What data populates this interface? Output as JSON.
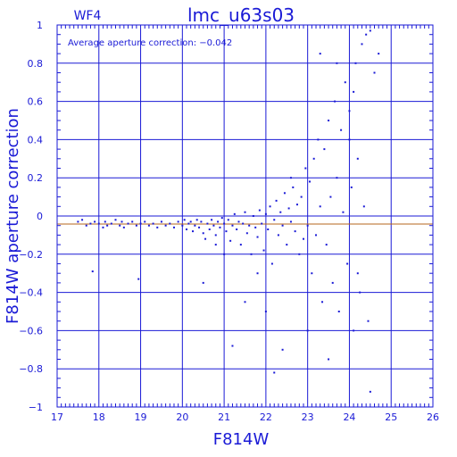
{
  "chart_data": {
    "type": "scatter",
    "title": "lmc_u63s03",
    "chip_label": "WF4",
    "annotation": "Average aperture correction: −0.042",
    "xlabel": "F814W",
    "ylabel": "F814W aperture correction",
    "xlim": [
      17,
      26
    ],
    "ylim": [
      -1,
      1
    ],
    "x_ticks": [
      17,
      18,
      19,
      20,
      21,
      22,
      23,
      24,
      25,
      26
    ],
    "x_tick_labels": [
      "17",
      "18",
      "19",
      "20",
      "21",
      "22",
      "23",
      "24",
      "25",
      "26"
    ],
    "y_ticks": [
      -1,
      -0.8,
      -0.6,
      -0.4,
      -0.2,
      0,
      0.2,
      0.4,
      0.6,
      0.8,
      1
    ],
    "y_tick_labels": [
      "−1",
      "−0.8",
      "−0.6",
      "−0.4",
      "−0.2",
      "0",
      "0.2",
      "0.4",
      "0.6",
      "0.8",
      "1"
    ],
    "grid": true,
    "mean_line": {
      "y": -0.042,
      "color": "#b5651d"
    },
    "zero_line": {
      "y": 0,
      "color": "#1a1ad6"
    },
    "point_color": "#1a1ad6",
    "points": [
      [
        17.5,
        -0.03
      ],
      [
        17.6,
        -0.02
      ],
      [
        17.7,
        -0.05
      ],
      [
        17.8,
        -0.04
      ],
      [
        17.85,
        -0.29
      ],
      [
        17.9,
        -0.03
      ],
      [
        18.0,
        -0.04
      ],
      [
        18.1,
        -0.06
      ],
      [
        18.15,
        -0.03
      ],
      [
        18.2,
        -0.05
      ],
      [
        18.3,
        -0.04
      ],
      [
        18.4,
        -0.02
      ],
      [
        18.5,
        -0.05
      ],
      [
        18.55,
        -0.03
      ],
      [
        18.6,
        -0.06
      ],
      [
        18.7,
        -0.04
      ],
      [
        18.8,
        -0.03
      ],
      [
        18.9,
        -0.05
      ],
      [
        18.95,
        -0.33
      ],
      [
        19.0,
        -0.04
      ],
      [
        19.1,
        -0.03
      ],
      [
        19.2,
        -0.05
      ],
      [
        19.3,
        -0.04
      ],
      [
        19.4,
        -0.06
      ],
      [
        19.5,
        -0.03
      ],
      [
        19.6,
        -0.05
      ],
      [
        19.7,
        -0.04
      ],
      [
        19.8,
        -0.06
      ],
      [
        19.9,
        -0.03
      ],
      [
        20.0,
        -0.05
      ],
      [
        20.05,
        -0.02
      ],
      [
        20.1,
        -0.07
      ],
      [
        20.15,
        -0.04
      ],
      [
        20.2,
        -0.03
      ],
      [
        20.25,
        -0.08
      ],
      [
        20.3,
        -0.05
      ],
      [
        20.35,
        -0.02
      ],
      [
        20.4,
        -0.06
      ],
      [
        20.45,
        -0.03
      ],
      [
        20.5,
        -0.09
      ],
      [
        20.55,
        -0.12
      ],
      [
        20.6,
        -0.04
      ],
      [
        20.65,
        -0.07
      ],
      [
        20.7,
        -0.02
      ],
      [
        20.75,
        -0.05
      ],
      [
        20.8,
        -0.1
      ],
      [
        20.85,
        -0.03
      ],
      [
        20.9,
        -0.06
      ],
      [
        20.95,
        -0.01
      ],
      [
        21.0,
        -0.04
      ],
      [
        21.05,
        -0.08
      ],
      [
        21.1,
        -0.02
      ],
      [
        21.15,
        -0.13
      ],
      [
        21.2,
        -0.05
      ],
      [
        21.25,
        0.01
      ],
      [
        21.3,
        -0.07
      ],
      [
        21.35,
        -0.03
      ],
      [
        21.4,
        -0.15
      ],
      [
        21.45,
        -0.04
      ],
      [
        21.5,
        0.02
      ],
      [
        21.55,
        -0.09
      ],
      [
        21.6,
        -0.05
      ],
      [
        21.65,
        -0.2
      ],
      [
        21.7,
        0.0
      ],
      [
        21.75,
        -0.06
      ],
      [
        21.8,
        -0.11
      ],
      [
        21.85,
        0.03
      ],
      [
        21.9,
        -0.04
      ],
      [
        21.95,
        -0.18
      ],
      [
        22.0,
        0.01
      ],
      [
        22.05,
        -0.07
      ],
      [
        22.1,
        0.05
      ],
      [
        22.15,
        -0.25
      ],
      [
        22.2,
        -0.02
      ],
      [
        22.25,
        0.08
      ],
      [
        22.3,
        -0.1
      ],
      [
        22.35,
        0.02
      ],
      [
        22.4,
        -0.05
      ],
      [
        22.45,
        0.12
      ],
      [
        22.5,
        -0.15
      ],
      [
        22.55,
        0.04
      ],
      [
        22.6,
        -0.03
      ],
      [
        22.65,
        0.15
      ],
      [
        22.7,
        -0.08
      ],
      [
        22.75,
        0.06
      ],
      [
        22.8,
        -0.2
      ],
      [
        22.85,
        0.1
      ],
      [
        22.9,
        -0.12
      ],
      [
        22.95,
        0.25
      ],
      [
        23.0,
        -0.05
      ],
      [
        23.05,
        0.18
      ],
      [
        23.1,
        -0.3
      ],
      [
        23.15,
        0.3
      ],
      [
        23.2,
        -0.1
      ],
      [
        23.25,
        0.4
      ],
      [
        23.3,
        0.05
      ],
      [
        23.35,
        -0.45
      ],
      [
        23.4,
        0.35
      ],
      [
        23.45,
        -0.15
      ],
      [
        23.5,
        0.5
      ],
      [
        23.55,
        0.1
      ],
      [
        23.6,
        -0.35
      ],
      [
        23.65,
        0.6
      ],
      [
        23.7,
        0.2
      ],
      [
        23.75,
        -0.5
      ],
      [
        23.8,
        0.45
      ],
      [
        23.85,
        0.02
      ],
      [
        23.9,
        0.7
      ],
      [
        23.95,
        -0.25
      ],
      [
        24.0,
        0.55
      ],
      [
        24.05,
        0.15
      ],
      [
        24.1,
        -0.6
      ],
      [
        24.15,
        0.8
      ],
      [
        24.2,
        0.3
      ],
      [
        24.25,
        -0.4
      ],
      [
        24.3,
        0.9
      ],
      [
        24.35,
        0.05
      ],
      [
        24.4,
        0.95
      ],
      [
        24.45,
        -0.55
      ],
      [
        24.5,
        0.97
      ],
      [
        24.6,
        0.75
      ],
      [
        24.7,
        0.85
      ],
      [
        24.5,
        -0.92
      ],
      [
        22.2,
        -0.82
      ],
      [
        22.4,
        -0.7
      ],
      [
        21.5,
        -0.45
      ],
      [
        21.2,
        -0.68
      ],
      [
        20.5,
        -0.35
      ],
      [
        23.5,
        -0.75
      ],
      [
        23.0,
        -0.6
      ],
      [
        23.3,
        0.85
      ],
      [
        24.0,
        0.4
      ],
      [
        24.2,
        -0.3
      ],
      [
        22.0,
        -0.5
      ],
      [
        21.8,
        -0.3
      ],
      [
        22.6,
        0.2
      ],
      [
        23.7,
        0.8
      ],
      [
        24.1,
        0.65
      ],
      [
        21.0,
        -0.2
      ],
      [
        20.8,
        -0.15
      ]
    ]
  }
}
